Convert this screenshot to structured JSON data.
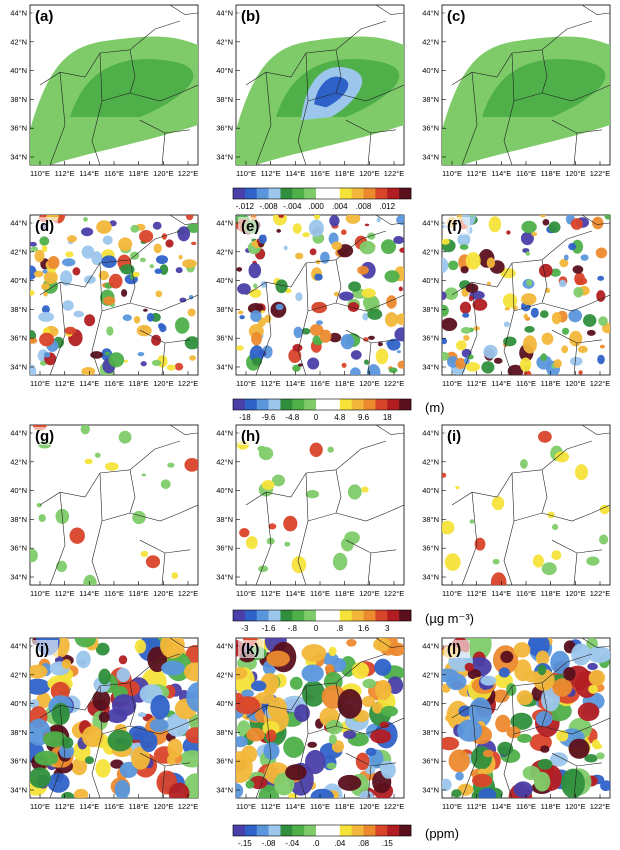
{
  "panels": [
    {
      "label": "(a)"
    },
    {
      "label": "(b)"
    },
    {
      "label": "(c)"
    },
    {
      "label": "(d)"
    },
    {
      "label": "(e)"
    },
    {
      "label": "(f)"
    },
    {
      "label": "(g)"
    },
    {
      "label": "(h)"
    },
    {
      "label": "(i)"
    },
    {
      "label": "(j)"
    },
    {
      "label": "(k)"
    },
    {
      "label": "(l)"
    }
  ],
  "axes": {
    "lat_ticks": [
      "34°N",
      "36°N",
      "38°N",
      "40°N",
      "42°N",
      "44°N"
    ],
    "lon_ticks": [
      "110°E",
      "112°E",
      "114°E",
      "116°E",
      "118°E",
      "120°E",
      "122°E"
    ]
  },
  "colorbars": [
    {
      "ticks": [
        "-.012",
        "-.008",
        "-.004",
        ".000",
        ".004",
        ".008",
        ".012"
      ],
      "unit": ""
    },
    {
      "ticks": [
        "-18",
        "-9.6",
        "-4.8",
        "0",
        "4.8",
        "9.6",
        "18"
      ],
      "unit": "(m)"
    },
    {
      "ticks": [
        "-3",
        "-1.6",
        "-.8",
        "0",
        ".8",
        "1.6",
        "3"
      ],
      "unit": "(µg m⁻³)"
    },
    {
      "ticks": [
        "-.15",
        "-.08",
        "-.04",
        ".0",
        ".04",
        ".08",
        ".15"
      ],
      "unit": "(ppm)"
    }
  ],
  "colors": {
    "palette": [
      "#4a3fa8",
      "#2f62c9",
      "#5a96dc",
      "#9cc6ec",
      "#2f8f3c",
      "#4fb04a",
      "#7fcb6a",
      "#ffffff",
      "#f5e33a",
      "#f2b73a",
      "#ec8a2e",
      "#d9452a",
      "#b21d22",
      "#5a0f1c"
    ]
  }
}
